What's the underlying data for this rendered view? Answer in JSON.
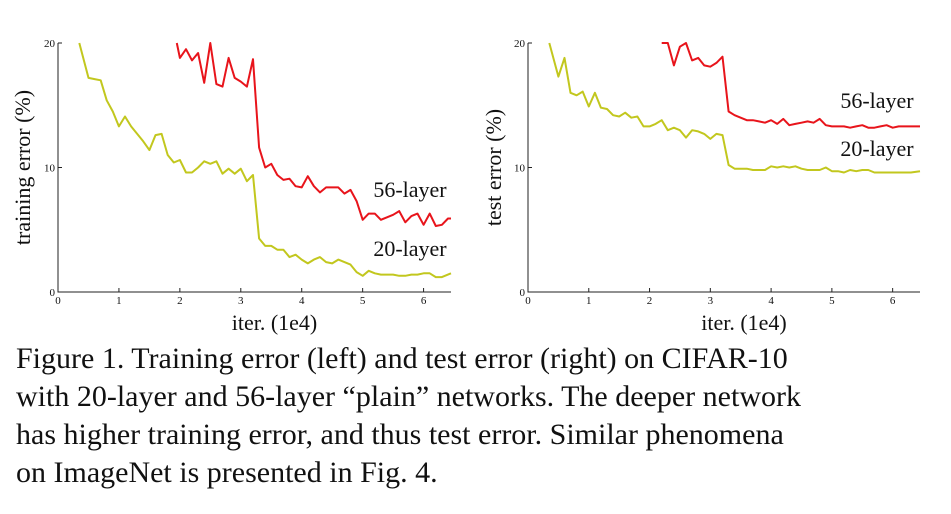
{
  "chart_data": [
    {
      "type": "line",
      "xlabel": "iter. (1e4)",
      "ylabel": "training error (%)",
      "xlim": [
        0,
        6.45
      ],
      "ylim": [
        0,
        20
      ],
      "xticks": [
        "0",
        "1",
        "2",
        "3",
        "4",
        "5",
        "6"
      ],
      "yticks": [
        "0",
        "10",
        "20"
      ],
      "grid": false,
      "series": [
        {
          "name": "56-layer",
          "color": "#e8141b",
          "x": [
            1.95,
            2.0,
            2.1,
            2.2,
            2.3,
            2.4,
            2.5,
            2.6,
            2.7,
            2.8,
            2.9,
            3.0,
            3.1,
            3.2,
            3.3,
            3.4,
            3.5,
            3.6,
            3.7,
            3.8,
            3.9,
            4.0,
            4.1,
            4.2,
            4.3,
            4.4,
            4.5,
            4.6,
            4.7,
            4.8,
            4.9,
            5.0,
            5.1,
            5.2,
            5.3,
            5.4,
            5.5,
            5.6,
            5.7,
            5.8,
            5.9,
            6.0,
            6.1,
            6.2,
            6.3,
            6.4,
            6.45
          ],
          "y": [
            20.0,
            18.8,
            19.5,
            18.6,
            19.2,
            16.8,
            20.0,
            16.7,
            16.5,
            18.8,
            17.2,
            16.9,
            16.5,
            18.7,
            11.6,
            10.0,
            10.3,
            9.4,
            9.0,
            9.1,
            8.5,
            8.4,
            9.3,
            8.5,
            8.0,
            8.4,
            8.4,
            8.4,
            7.9,
            8.2,
            7.3,
            5.8,
            6.3,
            6.3,
            5.8,
            6.0,
            6.2,
            6.5,
            5.6,
            6.1,
            6.3,
            5.4,
            6.3,
            5.3,
            5.4,
            5.9,
            5.9
          ]
        },
        {
          "name": "20-layer",
          "color": "#c2c71e",
          "x": [
            0.35,
            0.5,
            0.6,
            0.7,
            0.8,
            0.9,
            1.0,
            1.1,
            1.2,
            1.3,
            1.4,
            1.5,
            1.6,
            1.7,
            1.8,
            1.9,
            2.0,
            2.1,
            2.2,
            2.3,
            2.4,
            2.5,
            2.6,
            2.7,
            2.8,
            2.9,
            3.0,
            3.1,
            3.2,
            3.3,
            3.4,
            3.5,
            3.6,
            3.7,
            3.8,
            3.9,
            4.0,
            4.1,
            4.2,
            4.3,
            4.4,
            4.5,
            4.6,
            4.7,
            4.8,
            4.9,
            5.0,
            5.1,
            5.2,
            5.3,
            5.4,
            5.5,
            5.6,
            5.7,
            5.8,
            5.9,
            6.0,
            6.1,
            6.2,
            6.3,
            6.45
          ],
          "y": [
            20.0,
            17.2,
            17.1,
            17.0,
            15.4,
            14.5,
            13.3,
            14.1,
            13.3,
            12.7,
            12.1,
            11.4,
            12.6,
            12.7,
            11.0,
            10.4,
            10.6,
            9.6,
            9.6,
            10.0,
            10.5,
            10.3,
            10.5,
            9.5,
            9.9,
            9.5,
            9.9,
            8.9,
            9.4,
            4.3,
            3.7,
            3.7,
            3.4,
            3.4,
            2.8,
            3.0,
            2.6,
            2.3,
            2.6,
            2.8,
            2.4,
            2.3,
            2.6,
            2.4,
            2.2,
            1.6,
            1.3,
            1.7,
            1.5,
            1.4,
            1.4,
            1.4,
            1.3,
            1.3,
            1.4,
            1.4,
            1.5,
            1.5,
            1.2,
            1.2,
            1.5
          ]
        }
      ]
    },
    {
      "type": "line",
      "xlabel": "iter. (1e4)",
      "ylabel": "test error (%)",
      "xlim": [
        0,
        6.45
      ],
      "ylim": [
        0,
        20
      ],
      "xticks": [
        "0",
        "1",
        "2",
        "3",
        "4",
        "5",
        "6"
      ],
      "yticks": [
        "0",
        "10",
        "20"
      ],
      "grid": false,
      "series": [
        {
          "name": "56-layer",
          "color": "#e8141b",
          "x": [
            2.2,
            2.3,
            2.4,
            2.5,
            2.6,
            2.7,
            2.8,
            2.9,
            3.0,
            3.1,
            3.2,
            3.3,
            3.4,
            3.5,
            3.6,
            3.7,
            3.8,
            3.9,
            4.0,
            4.1,
            4.2,
            4.3,
            4.4,
            4.5,
            4.6,
            4.7,
            4.8,
            4.9,
            5.0,
            5.1,
            5.2,
            5.3,
            5.4,
            5.5,
            5.6,
            5.7,
            5.8,
            5.9,
            6.0,
            6.1,
            6.2,
            6.3,
            6.45
          ],
          "y": [
            20.0,
            20.0,
            18.2,
            19.7,
            20.0,
            18.6,
            18.8,
            18.2,
            18.1,
            18.4,
            18.9,
            14.5,
            14.2,
            14.0,
            13.8,
            13.8,
            13.7,
            13.6,
            13.8,
            13.5,
            13.9,
            13.4,
            13.5,
            13.6,
            13.7,
            13.6,
            13.9,
            13.4,
            13.3,
            13.3,
            13.3,
            13.2,
            13.3,
            13.4,
            13.2,
            13.2,
            13.3,
            13.4,
            13.2,
            13.3,
            13.3,
            13.3,
            13.3
          ]
        },
        {
          "name": "20-layer",
          "color": "#c2c71e",
          "x": [
            0.35,
            0.5,
            0.6,
            0.7,
            0.8,
            0.9,
            1.0,
            1.1,
            1.2,
            1.3,
            1.4,
            1.5,
            1.6,
            1.7,
            1.8,
            1.9,
            2.0,
            2.1,
            2.2,
            2.3,
            2.4,
            2.5,
            2.6,
            2.7,
            2.8,
            2.9,
            3.0,
            3.1,
            3.2,
            3.3,
            3.4,
            3.5,
            3.6,
            3.7,
            3.8,
            3.9,
            4.0,
            4.1,
            4.2,
            4.3,
            4.4,
            4.5,
            4.6,
            4.7,
            4.8,
            4.9,
            5.0,
            5.1,
            5.2,
            5.3,
            5.4,
            5.5,
            5.6,
            5.7,
            5.8,
            5.9,
            6.0,
            6.1,
            6.2,
            6.3,
            6.45
          ],
          "y": [
            20.0,
            17.3,
            18.8,
            16.0,
            15.8,
            16.1,
            14.9,
            16.0,
            14.8,
            14.7,
            14.2,
            14.1,
            14.4,
            14.0,
            14.1,
            13.3,
            13.3,
            13.5,
            13.8,
            13.0,
            13.2,
            13.0,
            12.4,
            13.0,
            12.9,
            12.7,
            12.3,
            12.7,
            12.6,
            10.2,
            9.9,
            9.9,
            9.9,
            9.8,
            9.8,
            9.8,
            10.1,
            10.0,
            10.1,
            10.0,
            10.1,
            9.9,
            9.8,
            9.8,
            9.8,
            10.0,
            9.7,
            9.7,
            9.6,
            9.8,
            9.7,
            9.8,
            9.8,
            9.6,
            9.6,
            9.6,
            9.6,
            9.6,
            9.6,
            9.6,
            9.7
          ]
        }
      ]
    }
  ],
  "caption": {
    "lines": [
      "Figure 1. Training error (left) and test error (right) on CIFAR-10",
      "with 20-layer and 56-layer “plain” networks. The deeper network",
      "has higher training error, and thus test error. Similar phenomena",
      "on ImageNet is presented in Fig. 4."
    ]
  }
}
